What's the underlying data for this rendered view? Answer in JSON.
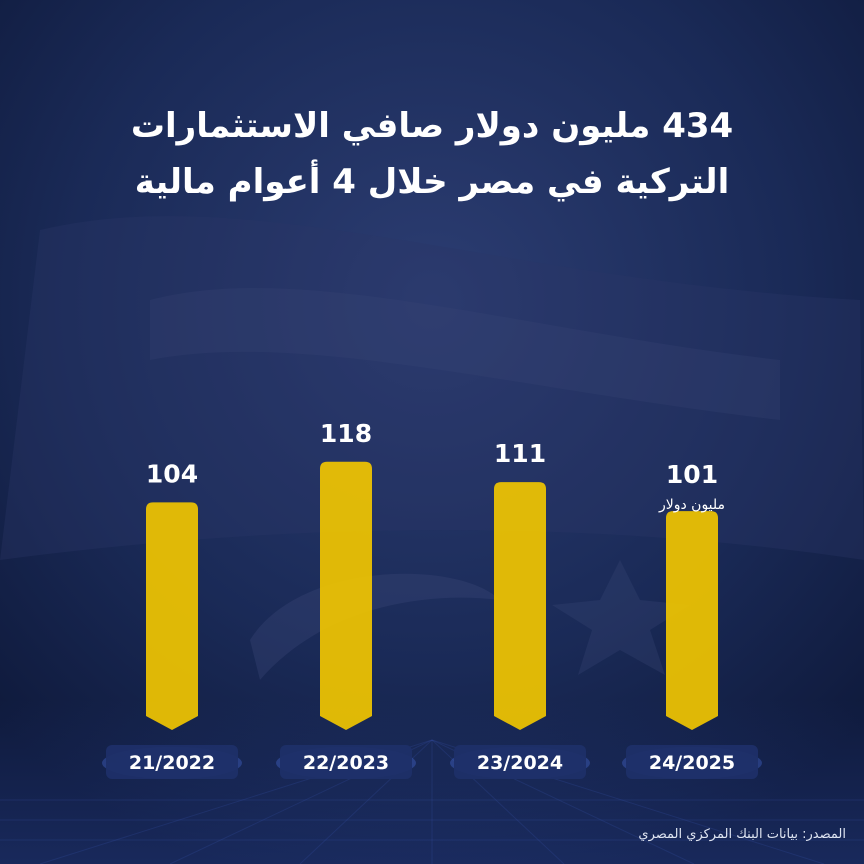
{
  "title_line_1": "434 مليون دولار صافي الاستثمارات",
  "title_line_2": "التركية في مصر خلال 4 أعوام مالية",
  "source": "المصدر: بيانات البنك المركزي المصري",
  "colors": {
    "background_dark": "#15234a",
    "bar": "#f1c500",
    "label_plate": "#1d2f68",
    "text": "#ffffff"
  },
  "chart_data": {
    "type": "bar",
    "categories": [
      "21/2022",
      "22/2023",
      "23/2024",
      "24/2025"
    ],
    "values": [
      104,
      118,
      111,
      101
    ],
    "unit_label": "مليون دولار",
    "unit_label_on_category": "24/2025",
    "title": "434 مليون دولار صافي الاستثمارات التركية في مصر خلال 4 أعوام مالية",
    "grid": false,
    "legend": "none"
  }
}
